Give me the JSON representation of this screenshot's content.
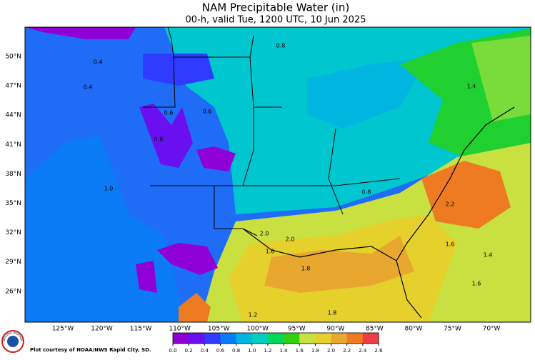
{
  "header": {
    "title": "NAM Precipitable Water (in)",
    "subtitle": "00-h, valid Tue, 1200 UTC, 10 Jun 2025"
  },
  "map": {
    "latitude_labels": [
      "50°N",
      "47°N",
      "44°N",
      "41°N",
      "38°N",
      "35°N",
      "32°N",
      "29°N",
      "26°N"
    ],
    "longitude_labels": [
      "125°W",
      "120°W",
      "115°W",
      "110°W",
      "105°W",
      "100°W",
      "95°W",
      "90°W",
      "85°W",
      "80°W",
      "75°W",
      "70°W"
    ],
    "contour_labels": [
      "0.8",
      "0.4",
      "0.4",
      "0.6",
      "0.6",
      "0.6",
      "1.0",
      "2.0",
      "2.0",
      "1.8",
      "1.6",
      "1.4",
      "2.2",
      "1.6",
      "0.8",
      "1.2",
      "1.4",
      "1.8",
      "1.6"
    ]
  },
  "colorbar": {
    "labels": [
      "0.0",
      "0.2",
      "0.4",
      "0.6",
      "0.8",
      "1.0",
      "1.2",
      "1.4",
      "1.6",
      "1.8",
      "2.0",
      "2.2",
      "2.4",
      "2.6"
    ],
    "colors": [
      "#8f00d6",
      "#6a0ff0",
      "#2f3cff",
      "#0a7af5",
      "#00b6e0",
      "#00cfc0",
      "#00d85a",
      "#30d010",
      "#c8e040",
      "#e6d02c",
      "#e8a830",
      "#ee7a22",
      "#f03c48",
      "#e0109a"
    ]
  },
  "footer": {
    "credit": "Plot courtesy of NOAA/NWS Rapid City, SD.",
    "logo_text": "NATIONAL WEATHER SERVICE"
  }
}
